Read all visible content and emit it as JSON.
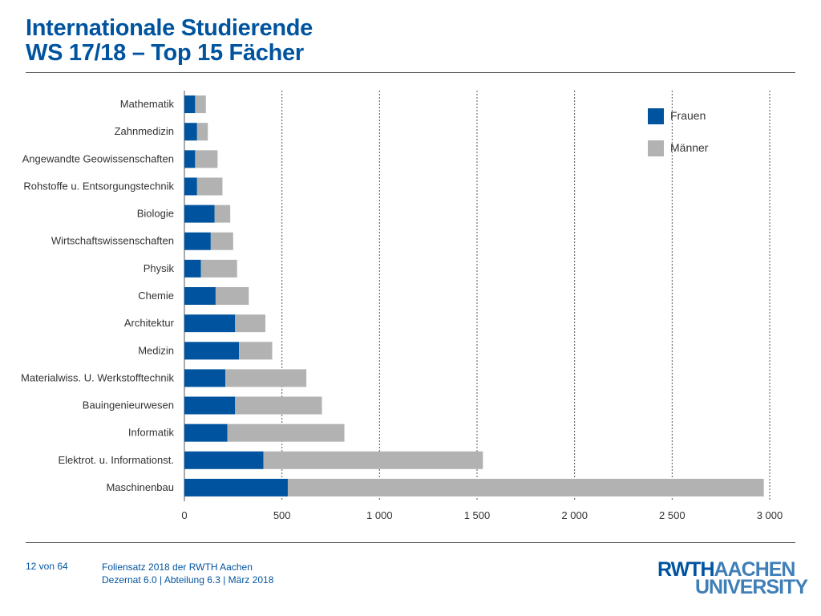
{
  "header": {
    "title_line1": "Internationale Studierende",
    "title_line2": "WS 17/18 – Top 15 Fächer"
  },
  "footer": {
    "page": "12 von 64",
    "line1": "Foliensatz 2018 der RWTH Aachen",
    "line2": "Dezernat 6.0 | Abteilung 6.3 | März 2018"
  },
  "logo": {
    "part1": "RWTH",
    "part2": "AACHEN",
    "part3": "UNIVERSITY"
  },
  "colors": {
    "accent": "#00549f",
    "frauen": "#00549f",
    "maenner": "#b2b2b2"
  },
  "chart_data": {
    "type": "bar",
    "orientation": "horizontal",
    "stacked": true,
    "categories": [
      "Mathematik",
      "Zahnmedizin",
      "Angewandte Geowissenschaften",
      "Rohstoffe u. Entsorgungstechnik",
      "Biologie",
      "Wirtschaftswissenschaften",
      "Physik",
      "Chemie",
      "Architektur",
      "Medizin",
      "Materialwiss. U. Werkstofftechnik",
      "Bauingenieurwesen",
      "Informatik",
      "Elektrot. u. Informationst.",
      "Maschinenbau"
    ],
    "series": [
      {
        "name": "Frauen",
        "values": [
          55,
          65,
          55,
          65,
          155,
          135,
          85,
          160,
          260,
          280,
          210,
          260,
          220,
          405,
          530
        ]
      },
      {
        "name": "Männer",
        "values": [
          55,
          55,
          115,
          130,
          80,
          115,
          185,
          170,
          155,
          170,
          415,
          445,
          600,
          1125,
          2440
        ]
      }
    ],
    "xlim": [
      0,
      3000
    ],
    "xticks": [
      0,
      500,
      1000,
      1500,
      2000,
      2500,
      3000
    ],
    "xtick_labels": [
      "0",
      "500",
      "1 000",
      "1 500",
      "2 000",
      "2 500",
      "3 000"
    ],
    "grid": "vertical dashed",
    "legend": "top-right"
  }
}
